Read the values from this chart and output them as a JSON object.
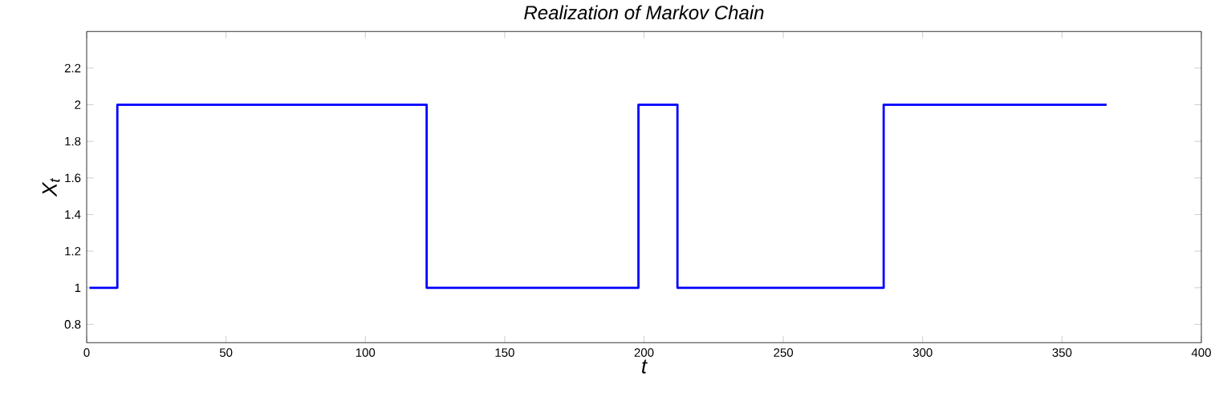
{
  "chart_data": {
    "type": "step",
    "title": "Realization of Markov Chain",
    "xlabel": "t",
    "ylabel": "X$_{t}$",
    "x": [
      1,
      11,
      122,
      198,
      212,
      286,
      366
    ],
    "values": [
      1,
      2,
      1,
      2,
      1,
      2,
      2
    ],
    "color": "#0000ff",
    "xlim": [
      0,
      400
    ],
    "xticks": [
      0,
      50,
      100,
      150,
      200,
      250,
      300,
      350,
      400
    ],
    "ylim": [
      0.7,
      2.4
    ],
    "yticks": [
      0.8,
      1,
      1.2,
      1.4,
      1.6,
      1.8,
      2,
      2.2
    ],
    "grid": false
  }
}
